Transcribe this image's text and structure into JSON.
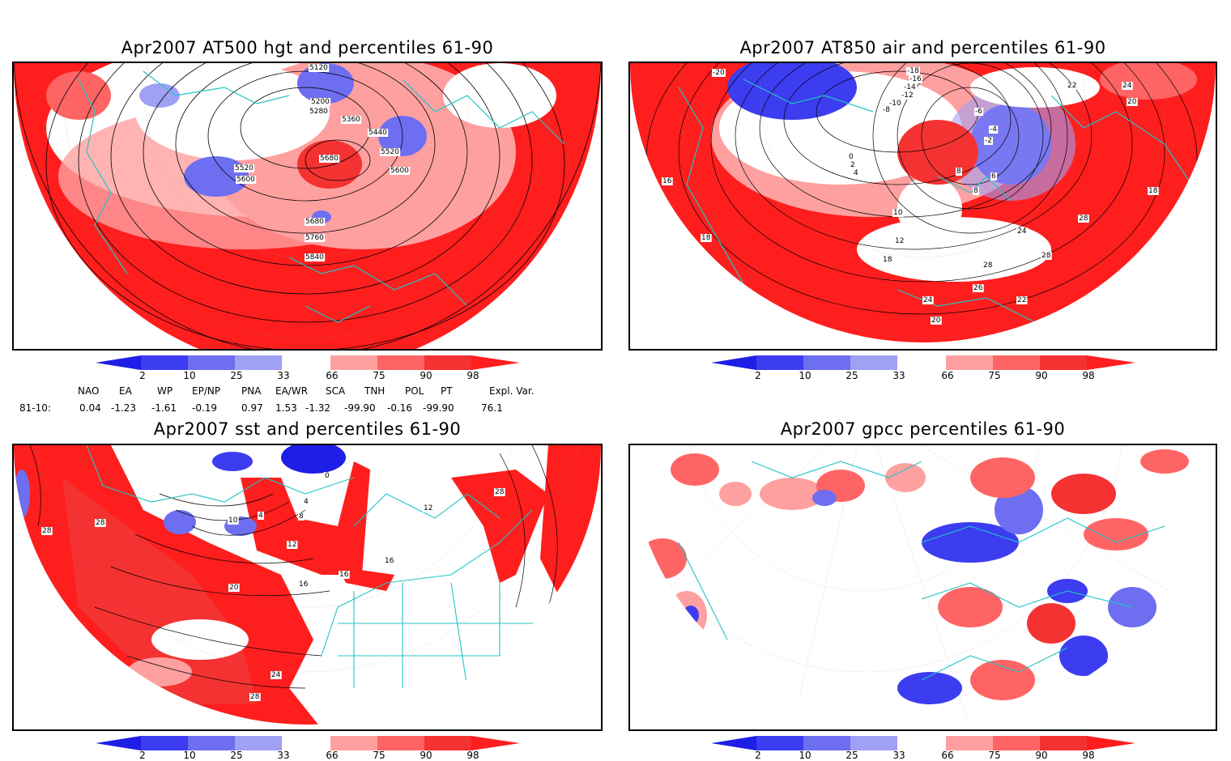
{
  "panels": [
    {
      "title": "Apr2007 AT500 hgt and percentiles 61-90",
      "contour_labels": [
        "5120",
        "5200",
        "5280",
        "5360",
        "5440",
        "5520",
        "5520",
        "5600",
        "5600",
        "5680",
        "5680",
        "5760",
        "5840"
      ]
    },
    {
      "title": "Apr2007 AT850 air and percentiles 61-90",
      "contour_labels": [
        "-20",
        "-18",
        "-16",
        "-14",
        "-12",
        "-10",
        "-8",
        "-6",
        "-4",
        "-2",
        "0",
        "2",
        "4",
        "6",
        "8",
        "8",
        "10",
        "12",
        "16",
        "18",
        "18",
        "18",
        "20",
        "20",
        "22",
        "22",
        "24",
        "24",
        "24",
        "26",
        "28",
        "28",
        "28"
      ]
    },
    {
      "title": "Apr2007 sst and percentiles 61-90",
      "contour_labels": [
        "0",
        "4",
        "4",
        "8",
        "10",
        "12",
        "12",
        "16",
        "16",
        "16",
        "20",
        "24",
        "28",
        "28",
        "28",
        "28"
      ]
    },
    {
      "title": "Apr2007 gpcc percentiles 61-90",
      "contour_labels": []
    }
  ],
  "colorbar": {
    "ticks": [
      "2",
      "10",
      "25",
      "33",
      "66",
      "75",
      "90",
      "98"
    ],
    "colors": {
      "deep_blue": "#1e1ee6",
      "blue": "#3c3cf0",
      "mid_blue": "#6e6ef0",
      "light_blue": "#a0a0f5",
      "white": "#ffffff",
      "light_red": "#ffa0a0",
      "mid_red": "#ff6464",
      "red": "#f53232",
      "deep_red": "#ff1e1e"
    }
  },
  "indices": {
    "headers": [
      "NAO",
      "EA",
      "WP",
      "EP/NP",
      "PNA",
      "EA/WR",
      "SCA",
      "TNH",
      "POL",
      "PT",
      "Expl. Var."
    ],
    "row_label": "81-10:",
    "values": [
      "0.04",
      "-1.23",
      "-1.61",
      "-0.19",
      "0.97",
      "1.53",
      "-1.32",
      "-99.90",
      "-0.16",
      "-99.90",
      "76.1"
    ]
  },
  "map_colors": {
    "coast": "#22c4c4",
    "contour": "#000000",
    "grid": "#888888"
  }
}
